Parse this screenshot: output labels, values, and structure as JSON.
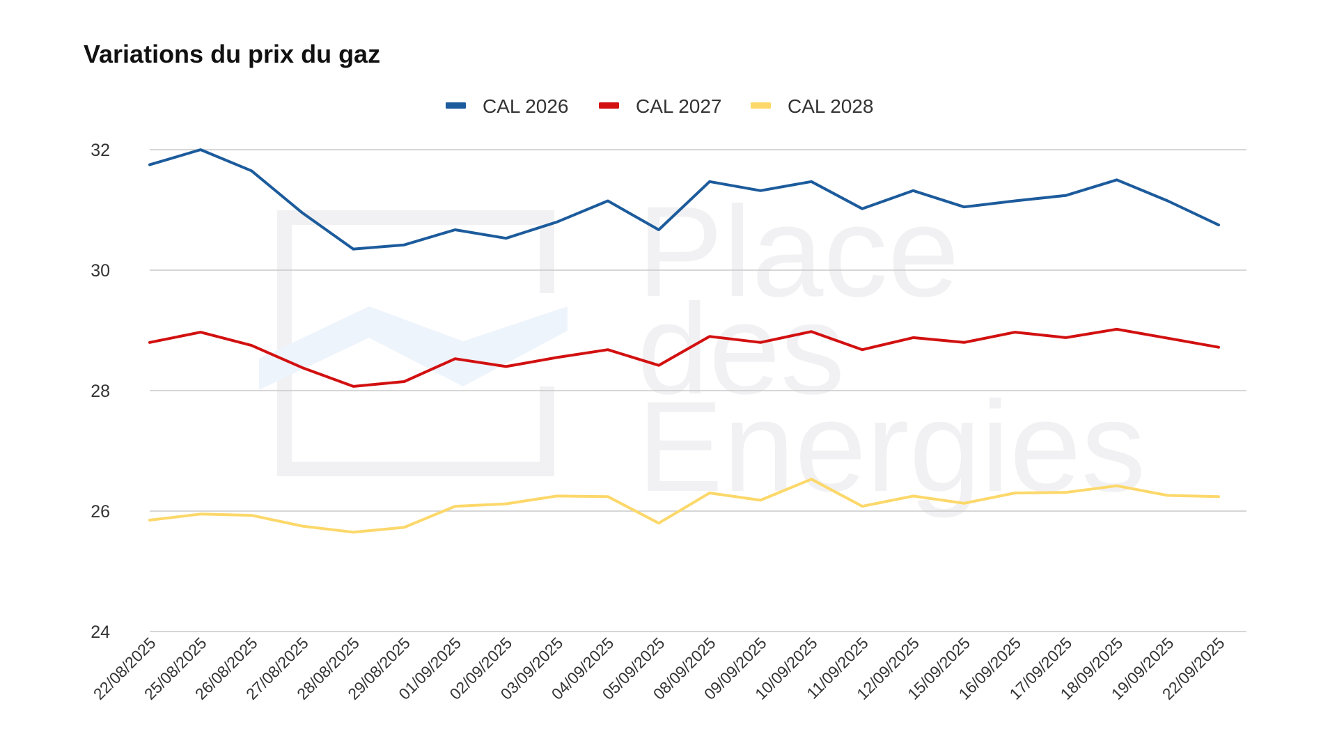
{
  "colors": {
    "cal2026": "#1c5b9c",
    "cal2027": "#d21010",
    "cal2028": "#fcd86a",
    "grid": "#c8c8c8",
    "watermark": "#f0f0f3"
  },
  "watermark": {
    "lines": [
      "Place",
      "des",
      "Energies"
    ]
  },
  "chart_data": {
    "type": "line",
    "title": "Variations du prix du gaz",
    "xlabel": "",
    "ylabel": "",
    "ylim": [
      24,
      32
    ],
    "yticks": [
      "24",
      "26",
      "28",
      "30",
      "32"
    ],
    "grid": true,
    "legend_position": "top-center",
    "categories": [
      "22/08/2025",
      "25/08/2025",
      "26/08/2025",
      "27/08/2025",
      "28/08/2025",
      "29/08/2025",
      "01/09/2025",
      "02/09/2025",
      "03/09/2025",
      "04/09/2025",
      "05/09/2025",
      "08/09/2025",
      "09/09/2025",
      "10/09/2025",
      "11/09/2025",
      "12/09/2025",
      "15/09/2025",
      "16/09/2025",
      "17/09/2025",
      "18/09/2025",
      "19/09/2025",
      "22/09/2025"
    ],
    "series": [
      {
        "name": "CAL 2026",
        "color_key": "cal2026",
        "values": [
          31.75,
          32.0,
          31.65,
          30.95,
          30.35,
          30.42,
          30.67,
          30.53,
          30.8,
          31.15,
          30.67,
          31.47,
          31.32,
          31.47,
          31.02,
          31.32,
          31.05,
          31.15,
          31.24,
          31.5,
          31.15,
          30.75
        ]
      },
      {
        "name": "CAL 2027",
        "color_key": "cal2027",
        "values": [
          28.8,
          28.97,
          28.75,
          28.38,
          28.07,
          28.15,
          28.53,
          28.4,
          28.55,
          28.68,
          28.42,
          28.9,
          28.8,
          28.98,
          28.68,
          28.88,
          28.8,
          28.97,
          28.88,
          29.02,
          28.87,
          28.72
        ]
      },
      {
        "name": "CAL 2028",
        "color_key": "cal2028",
        "values": [
          25.85,
          25.95,
          25.93,
          25.75,
          25.65,
          25.73,
          26.08,
          26.12,
          26.25,
          26.24,
          25.8,
          26.3,
          26.18,
          26.53,
          26.08,
          26.25,
          26.13,
          26.3,
          26.31,
          26.42,
          26.26,
          26.24
        ]
      }
    ]
  }
}
